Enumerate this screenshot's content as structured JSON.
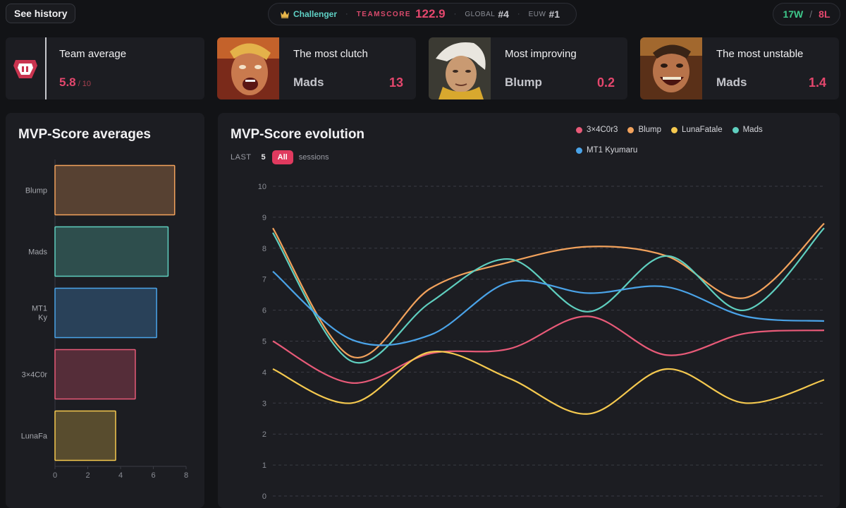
{
  "header": {
    "history_button": "See history",
    "tier": "Challenger",
    "teamscore_label": "TEAMSCORE",
    "teamscore_value": "122.9",
    "global_label": "GLOBAL",
    "global_rank": "#4",
    "region_label": "EUW",
    "region_rank": "#1",
    "wins": "17W",
    "losses": "8L",
    "tier_color": "#5fd2c6",
    "icon": "crown-icon"
  },
  "cards": {
    "team_average": {
      "title": "Team average",
      "value": "5.8",
      "max": " / 10",
      "icon": "team-logo-icon"
    },
    "clutch": {
      "title": "The most clutch",
      "name": "Mads",
      "value": "13",
      "icon": "champion-portrait-rage"
    },
    "improving": {
      "title": "Most improving",
      "name": "Blump",
      "value": "0.2",
      "icon": "champion-portrait-white-hair"
    },
    "unstable": {
      "title": "The most unstable",
      "name": "Mads",
      "value": "1.4",
      "icon": "champion-portrait-laughing"
    }
  },
  "averages": {
    "title": "MVP-Score averages",
    "chart_data": {
      "type": "bar",
      "orientation": "horizontal",
      "categories": [
        "Blump",
        "Mads",
        "MT1 Ky",
        "3×4C0r",
        "LunaFa"
      ],
      "values": [
        7.3,
        6.9,
        6.2,
        4.9,
        3.7
      ],
      "colors": [
        "#f2a25c",
        "#5fcfbf",
        "#4aa3e8",
        "#e85a78",
        "#f5c94f"
      ],
      "xlim": [
        0,
        8
      ],
      "xticks": [
        "0",
        "2",
        "4",
        "6",
        "8"
      ]
    }
  },
  "evolution": {
    "title": "MVP-Score evolution",
    "sessions_prefix": "LAST",
    "sessions_option": "5",
    "sessions_active": "All",
    "sessions_suffix": "sessions",
    "chart_data": {
      "type": "line",
      "x": [
        0,
        1,
        2,
        3,
        4,
        5,
        6,
        7
      ],
      "ylim": [
        0,
        10
      ],
      "yticks": [
        "0",
        "1",
        "2",
        "3",
        "4",
        "5",
        "6",
        "7",
        "8",
        "9",
        "10"
      ],
      "grid": true,
      "legend_position": "top-right",
      "series": [
        {
          "name": "3×4C0r3",
          "color": "#e85a78",
          "values": [
            5.0,
            3.65,
            4.6,
            4.75,
            5.8,
            4.55,
            5.25,
            5.35
          ]
        },
        {
          "name": "Blump",
          "color": "#f2a25c",
          "values": [
            8.65,
            4.5,
            6.7,
            7.55,
            8.05,
            7.75,
            6.4,
            8.8
          ]
        },
        {
          "name": "LunaFatale",
          "color": "#f5c94f",
          "values": [
            4.1,
            3.0,
            4.65,
            3.8,
            2.65,
            4.1,
            3.0,
            3.75
          ]
        },
        {
          "name": "Mads",
          "color": "#5fcfbf",
          "values": [
            8.5,
            4.35,
            6.25,
            7.65,
            5.95,
            7.75,
            6.0,
            8.65
          ]
        },
        {
          "name": "MT1 Kyumaru",
          "color": "#4aa3e8",
          "values": [
            7.25,
            5.05,
            5.2,
            6.9,
            6.55,
            6.75,
            5.8,
            5.65
          ]
        }
      ]
    }
  }
}
